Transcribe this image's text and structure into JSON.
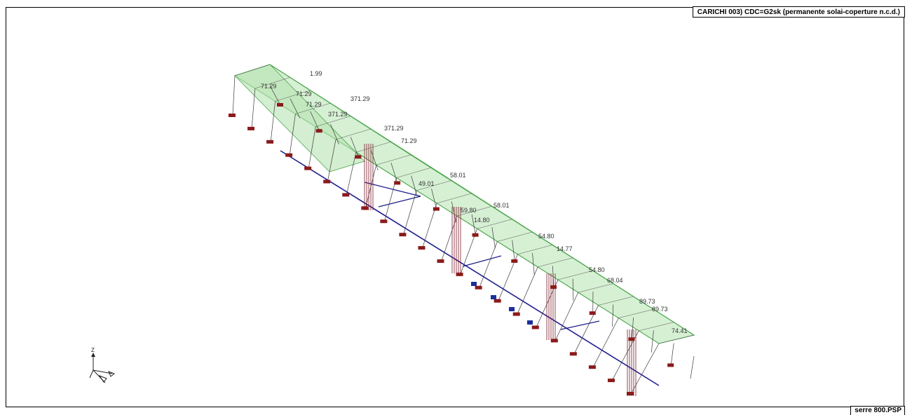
{
  "header": {
    "title": "CARICHI   003) CDC=G2sk (permanente  solai-coperture n.c.d.)"
  },
  "footer": {
    "file_name": "serre 800.PSP"
  },
  "axes_triad": {
    "z_label": "Z"
  },
  "colors": {
    "roof_fill": "#b5e3b0",
    "roof_edge": "#4fa74f",
    "column": "#3b3b3b",
    "beam": "#1f1f8f",
    "support": "#8b1a1a",
    "support_blue": "#1d2f9c"
  },
  "load_labels": [
    {
      "text": "1.99"
    },
    {
      "text": "71.29"
    },
    {
      "text": "371.29"
    },
    {
      "text": "71.29"
    },
    {
      "text": "71.29"
    },
    {
      "text": "371.29"
    },
    {
      "text": "371.29"
    },
    {
      "text": "71.29"
    },
    {
      "text": "58.01"
    },
    {
      "text": "58.01"
    },
    {
      "text": "49.01"
    },
    {
      "text": "59.80"
    },
    {
      "text": "14.80"
    },
    {
      "text": "54.80"
    },
    {
      "text": "14.77"
    },
    {
      "text": "54.80"
    },
    {
      "text": "68.04"
    },
    {
      "text": "89.73"
    },
    {
      "text": "89.73"
    },
    {
      "text": "74.41"
    }
  ]
}
